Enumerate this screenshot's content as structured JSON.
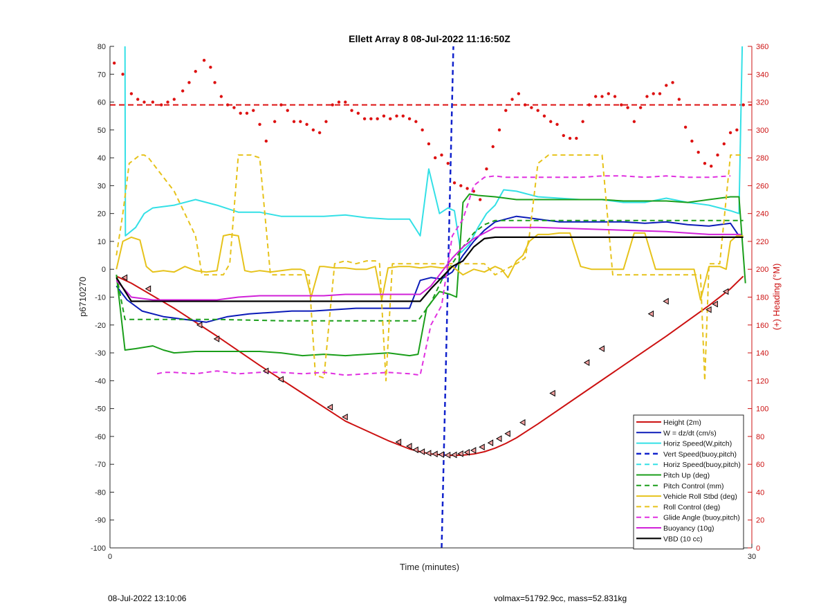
{
  "footer": {
    "timestamp": "08-Jul-2022 13:10:06",
    "summary": "volmax=51792.9cc, mass=52.831kg"
  },
  "chart_data": {
    "type": "line",
    "title": "Ellett Array 8 08-Jul-2022 11:16:50Z",
    "xlabel": "Time (minutes)",
    "ylabel": "p6710270",
    "ylabel_right": "(+) Heading (°M)",
    "xlim": [
      0,
      30
    ],
    "ylim": [
      -100,
      80
    ],
    "ylim_right": [
      0,
      360
    ],
    "xticks": [
      0,
      30
    ],
    "yticks": [
      80,
      70,
      60,
      50,
      40,
      30,
      20,
      10,
      0,
      -10,
      -20,
      -30,
      -40,
      -50,
      -60,
      -70,
      -80,
      -90,
      -100
    ],
    "yticks_right": [
      360,
      340,
      320,
      300,
      280,
      260,
      240,
      220,
      200,
      180,
      160,
      140,
      120,
      100,
      80,
      60,
      40,
      20,
      0
    ],
    "grid": false,
    "legend_position": "bottom-right",
    "colors": {
      "height": "#cc1111",
      "w": "#0a1ab8",
      "horiz": "#33e0e6",
      "vert_buoy": "#1122cc",
      "pitch": "#1a9e1a",
      "roll": "#e6c21a",
      "glide": "#e030e0",
      "buoyancy": "#d020d8",
      "vbd": "#000000",
      "heading": "#dd1111",
      "axis_right": "#cc1111"
    },
    "series": [
      {
        "name": "Height (2m)",
        "color": "#cc1111",
        "style": "solid",
        "width": 2,
        "x": [
          0.3,
          1.0,
          3.0,
          5.0,
          7.0,
          9.0,
          11.0,
          13.0,
          14.0,
          14.5,
          15.0,
          15.5,
          16.0,
          16.5,
          17.0,
          17.5,
          18.0,
          18.5,
          19.0,
          19.5,
          20.0,
          22.0,
          24.0,
          26.0,
          28.0,
          29.0,
          29.6
        ],
        "y": [
          -2.5,
          -5,
          -14,
          -24,
          -34.5,
          -44.5,
          -54.5,
          -61.5,
          -64.5,
          -65.5,
          -66.3,
          -66.6,
          -66.8,
          -66.7,
          -66.3,
          -65.5,
          -64.2,
          -62.5,
          -60.5,
          -58,
          -55.5,
          -45,
          -34.5,
          -24,
          -13,
          -7,
          -2.5
        ]
      },
      {
        "name": "W = dz/dt (cm/s)",
        "color": "#0a1ab8",
        "style": "solid",
        "width": 2,
        "x": [
          0.3,
          0.8,
          1.5,
          2.5,
          3.5,
          4.5,
          5.5,
          6.5,
          7.5,
          8.5,
          9.5,
          10.5,
          11.5,
          12.5,
          13.5,
          14.0,
          14.5,
          15.0,
          15.5,
          16.0,
          16.5,
          17.0,
          17.5,
          18.0,
          18.5,
          19.0,
          20.0,
          21.0,
          22.0,
          23.0,
          24.0,
          25.0,
          26.0,
          27.0,
          28.0,
          29.0,
          29.4
        ],
        "y": [
          -6,
          -11,
          -15,
          -17,
          -18,
          -19,
          -17,
          -16,
          -15.5,
          -15,
          -15,
          -14.5,
          -14,
          -14,
          -14,
          -14,
          -4,
          -3,
          -3.5,
          -1,
          5,
          10,
          14,
          17,
          18,
          19,
          18,
          17,
          17,
          17,
          17,
          16.5,
          17,
          16,
          15.5,
          16.5,
          12
        ]
      },
      {
        "name": "Horiz Speed(W,pitch)",
        "color": "#33e0e6",
        "style": "solid",
        "width": 2,
        "x": [
          0.7,
          0.72,
          1.2,
          1.6,
          2.0,
          3.0,
          4.0,
          5.0,
          6.0,
          7.0,
          8.0,
          9.0,
          10.0,
          11.0,
          12.0,
          13.0,
          14.0,
          14.5,
          14.9,
          15.4,
          15.8,
          16.1,
          16.4,
          16.8,
          17.2,
          17.6,
          18.0,
          18.4,
          19.0,
          20.0,
          21.0,
          22.0,
          23.0,
          24.0,
          25.0,
          26.0,
          27.0,
          28.0,
          29.0,
          29.4,
          29.55
        ],
        "y": [
          80,
          12,
          15,
          20,
          22,
          23,
          25,
          23,
          20.5,
          20.5,
          19,
          19,
          19,
          19.5,
          18.5,
          18,
          18,
          12,
          36,
          20,
          22,
          21,
          6,
          9,
          15,
          20,
          23,
          28.5,
          28,
          26,
          25.5,
          25,
          25,
          24,
          24,
          25.5,
          24,
          23,
          21,
          20,
          80
        ]
      },
      {
        "name": "Vert Speed(buoy,pitch)",
        "color": "#1122cc",
        "style": "dash",
        "width": 2.5,
        "x": [
          15.5,
          16.05
        ],
        "y": [
          -100,
          80
        ]
      },
      {
        "name": "Horiz Speed(buoy,pitch)",
        "color": "#33e0e6",
        "style": "dash",
        "width": 2,
        "x": [],
        "y": []
      },
      {
        "name": "Pitch Up (deg)",
        "color": "#1a9e1a",
        "style": "solid",
        "width": 2,
        "x": [
          0.3,
          0.7,
          1.2,
          2.0,
          2.5,
          3.0,
          4.0,
          5.0,
          6.0,
          7.0,
          8.0,
          9.0,
          10.0,
          11.0,
          12.0,
          13.0,
          14.0,
          14.4,
          14.8,
          15.4,
          15.9,
          16.2,
          16.5,
          16.8,
          17.2,
          18.0,
          19.0,
          20.0,
          21.0,
          22.0,
          23.0,
          24.0,
          25.0,
          26.0,
          27.0,
          28.0,
          29.0,
          29.4,
          29.7
        ],
        "y": [
          -2,
          -29,
          -28.5,
          -27.5,
          -29,
          -30,
          -29.5,
          -29.5,
          -29.5,
          -29.5,
          -30,
          -31,
          -30.5,
          -31,
          -30.5,
          -30,
          -31,
          -30.5,
          -14,
          -8,
          -9,
          -10,
          24,
          27,
          26.5,
          26,
          25,
          25,
          25,
          25,
          25,
          24.5,
          24.5,
          24.5,
          24,
          25,
          26,
          26,
          -5
        ]
      },
      {
        "name": "Pitch Control (mm)",
        "color": "#1a9e1a",
        "style": "dash",
        "width": 2,
        "x": [
          0.3,
          0.7,
          2.0,
          5.0,
          8.0,
          11.0,
          14.4,
          15.0,
          15.5,
          16.0,
          16.5,
          17.0,
          17.5,
          18.0,
          19.0,
          22.0,
          25.0,
          28.0,
          29.6
        ],
        "y": [
          -2,
          -18,
          -18,
          -18,
          -18.5,
          -18.5,
          -18.5,
          -12,
          -4,
          2,
          8,
          13,
          16,
          17.5,
          17.5,
          17.5,
          17.5,
          17.5,
          17.5
        ]
      },
      {
        "name": "Vehicle Roll Stbd (deg)",
        "color": "#e6c21a",
        "style": "solid",
        "width": 2,
        "x": [
          0.3,
          0.6,
          1.0,
          1.4,
          1.7,
          2.0,
          2.5,
          3.0,
          3.5,
          4.0,
          4.5,
          5.0,
          5.3,
          5.6,
          6.0,
          6.3,
          6.6,
          7.0,
          7.5,
          8.0,
          8.5,
          8.9,
          9.1,
          9.4,
          9.8,
          10.0,
          10.5,
          11.0,
          11.5,
          12.0,
          12.4,
          12.7,
          13.0,
          13.5,
          14.0,
          14.5,
          15.0,
          15.5,
          16.0,
          16.5,
          17.0,
          17.5,
          18.0,
          18.3,
          18.6,
          19.0,
          19.3,
          19.6,
          20.0,
          20.5,
          21.0,
          21.5,
          22.0,
          22.5,
          23.0,
          23.3,
          23.6,
          24.0,
          24.5,
          25.0,
          25.5,
          26.0,
          26.4,
          26.7,
          27.0,
          27.3,
          27.6,
          28.0,
          28.5,
          28.8,
          29.0,
          29.3,
          29.6
        ],
        "y": [
          0,
          10,
          11.5,
          10.5,
          1,
          -1,
          -0.5,
          -1,
          1,
          -0.5,
          -1,
          -0.5,
          12,
          12.5,
          12,
          -0.5,
          -1,
          -0.5,
          -1,
          -0.5,
          0,
          0,
          -0.5,
          -10,
          1,
          1,
          0.5,
          0.5,
          0,
          0,
          1,
          -11,
          0.5,
          1,
          1,
          0.5,
          1,
          0.5,
          1,
          -2,
          0,
          -1,
          1,
          0,
          -3,
          3,
          5,
          10,
          12.5,
          12.5,
          13,
          13,
          1,
          0,
          0,
          0,
          0,
          0,
          13,
          13,
          0,
          0,
          0,
          0,
          0,
          0,
          -11,
          1,
          1,
          0,
          10,
          12,
          12
        ]
      },
      {
        "name": "Roll Control (deg)",
        "color": "#e6c21a",
        "style": "dash",
        "width": 2,
        "x": [
          0.3,
          0.6,
          0.9,
          1.4,
          1.6,
          1.8,
          3.0,
          4.0,
          4.3,
          4.6,
          5.0,
          5.3,
          5.6,
          6.0,
          6.3,
          6.6,
          7.0,
          7.5,
          8.0,
          8.4,
          8.7,
          9.0,
          9.3,
          9.6,
          10.0,
          10.5,
          11.0,
          11.5,
          12.0,
          12.4,
          12.6,
          12.9,
          13.2,
          14.0,
          14.5,
          15.0,
          15.5,
          16.0,
          16.5,
          17.0,
          17.5,
          18.0,
          18.5,
          19.0,
          19.4,
          19.6,
          19.8,
          20.0,
          20.5,
          21.0,
          21.5,
          22.0,
          22.4,
          22.6,
          22.8,
          23.0,
          23.5,
          24.0,
          24.5,
          25.0,
          25.3,
          25.5,
          25.7,
          26.0,
          26.5,
          27.0,
          27.3,
          27.6,
          27.8,
          28.0,
          28.5,
          29.0,
          29.3,
          29.6
        ],
        "y": [
          5,
          20,
          38,
          41,
          41,
          40,
          28,
          12,
          -2,
          -2,
          -2,
          -2,
          2,
          41,
          41,
          41,
          40,
          -2,
          -2,
          -2,
          -2,
          -2,
          -2,
          -38,
          -39,
          2,
          3,
          2,
          3,
          3,
          2,
          -40,
          2,
          2,
          2,
          2,
          2,
          2,
          2,
          2,
          2,
          -2,
          0,
          2,
          4,
          12,
          25,
          38,
          41,
          41,
          41,
          41,
          41,
          41,
          41,
          41,
          -2,
          -2,
          -2,
          -2,
          -2,
          -2,
          -2,
          -2,
          -2,
          -2,
          -2,
          -2,
          -40,
          2,
          2,
          41,
          41,
          41
        ]
      },
      {
        "name": "Glide Angle (buoy,pitch)",
        "color": "#e030e0",
        "style": "dash",
        "width": 2,
        "x": [
          2.2,
          2.5,
          3.0,
          4.0,
          5.0,
          6.0,
          7.0,
          8.0,
          9.0,
          10.0,
          11.0,
          12.0,
          13.0,
          14.0,
          14.5,
          15.0,
          15.5,
          16.0,
          16.5,
          17.0,
          17.5,
          18.0,
          18.5,
          19.0,
          20.0,
          21.0,
          22.0,
          23.0,
          24.0,
          25.0,
          26.0,
          27.0,
          28.0,
          29.0
        ],
        "y": [
          -37.5,
          -37,
          -37,
          -37.5,
          -36.5,
          -37.5,
          -37,
          -37,
          -37.5,
          -37,
          -38,
          -37.5,
          -37,
          -37.5,
          -38,
          -20,
          -13,
          12,
          18,
          30,
          33,
          33.5,
          33,
          33,
          33,
          33,
          33,
          33.5,
          33.5,
          33,
          33.5,
          33,
          33,
          33.5
        ]
      },
      {
        "name": "Buoyancy (10g)",
        "color": "#d020d8",
        "style": "solid",
        "width": 2,
        "x": [
          0.3,
          1.0,
          2.0,
          3.0,
          4.0,
          5.0,
          6.0,
          7.0,
          8.0,
          9.0,
          10.0,
          11.0,
          12.0,
          13.0,
          14.0,
          14.5,
          15.0,
          15.5,
          16.0,
          16.5,
          17.0,
          17.5,
          18.0,
          18.5,
          19.0,
          20.0,
          22.0,
          24.0,
          26.0,
          28.0,
          29.0,
          29.5
        ],
        "y": [
          -4,
          -10,
          -11,
          -11,
          -11,
          -11,
          -10,
          -9.5,
          -9.5,
          -9.5,
          -9.5,
          -9,
          -9,
          -9,
          -9,
          -9,
          -6,
          -1,
          4,
          8,
          11,
          13,
          15,
          15,
          15,
          15,
          14.5,
          14,
          13.5,
          12.5,
          12.5,
          12.5
        ]
      },
      {
        "name": "VBD (10 cc)",
        "color": "#000000",
        "style": "solid",
        "width": 2.2,
        "x": [
          0.3,
          1.0,
          2.0,
          3.0,
          4.0,
          5.0,
          6.0,
          7.0,
          8.0,
          9.0,
          10.0,
          11.0,
          12.0,
          13.0,
          14.0,
          14.5,
          15.0,
          15.5,
          16.0,
          16.5,
          17.0,
          17.5,
          18.0,
          18.5,
          19.0,
          20.0,
          22.0,
          24.0,
          26.0,
          28.0,
          29.0,
          29.6
        ],
        "y": [
          -3,
          -11.5,
          -11.5,
          -11.5,
          -11.5,
          -11.5,
          -11.5,
          -11.5,
          -11.5,
          -11.5,
          -11.5,
          -11.5,
          -11.5,
          -11.5,
          -11.5,
          -11.5,
          -7,
          -3,
          1,
          3,
          8,
          11,
          11.5,
          11.5,
          11.5,
          11.5,
          11.5,
          11.5,
          11.5,
          11.5,
          11.5,
          11.5
        ]
      }
    ],
    "heading_points": {
      "name": "Heading",
      "axis": "right",
      "color": "#dd1111",
      "x": [
        0.2,
        0.6,
        1.0,
        1.3,
        1.6,
        2.0,
        2.4,
        2.7,
        3.0,
        3.4,
        3.7,
        4.0,
        4.4,
        4.7,
        4.9,
        5.2,
        5.5,
        5.8,
        6.1,
        6.4,
        6.7,
        7.0,
        7.3,
        7.7,
        8.0,
        8.3,
        8.6,
        8.9,
        9.2,
        9.5,
        9.8,
        10.1,
        10.4,
        10.7,
        11.0,
        11.3,
        11.6,
        11.9,
        12.2,
        12.5,
        12.8,
        13.1,
        13.4,
        13.7,
        14.0,
        14.3,
        14.6,
        14.9,
        15.2,
        15.5,
        15.8,
        16.1,
        16.4,
        16.7,
        17.0,
        17.3,
        17.6,
        17.9,
        18.2,
        18.5,
        18.8,
        19.1,
        19.4,
        19.7,
        20.0,
        20.3,
        20.6,
        20.9,
        21.2,
        21.5,
        21.8,
        22.1,
        22.4,
        22.7,
        23.0,
        23.3,
        23.6,
        23.9,
        24.2,
        24.5,
        24.8,
        25.1,
        25.4,
        25.7,
        26.0,
        26.3,
        26.6,
        26.9,
        27.2,
        27.5,
        27.8,
        28.1,
        28.4,
        28.7,
        29.0,
        29.3,
        29.6
      ],
      "y": [
        348,
        340,
        326,
        322,
        320,
        320,
        318,
        320,
        322,
        328,
        334,
        342,
        350,
        345,
        334,
        324,
        318,
        316,
        312,
        312,
        314,
        304,
        292,
        306,
        318,
        314,
        306,
        306,
        304,
        300,
        298,
        306,
        318,
        320,
        320,
        314,
        312,
        308,
        308,
        308,
        310,
        308,
        310,
        310,
        308,
        306,
        300,
        290,
        280,
        282,
        276,
        262,
        260,
        258,
        256,
        250,
        272,
        288,
        300,
        314,
        322,
        326,
        318,
        316,
        314,
        310,
        306,
        304,
        296,
        294,
        294,
        306,
        318,
        324,
        324,
        326,
        324,
        318,
        316,
        306,
        316,
        324,
        326,
        326,
        332,
        334,
        322,
        302,
        292,
        284,
        276,
        274,
        282,
        290,
        298,
        300,
        318
      ]
    },
    "heading_reference": {
      "name": "Heading target",
      "axis": "right",
      "value": 318,
      "color": "#dd1111",
      "style": "dash"
    },
    "height_markers": {
      "x": [
        0.7,
        1.8,
        4.2,
        5.0,
        7.3,
        8.0,
        10.3,
        11.0,
        13.5,
        14.0,
        14.3,
        14.6,
        14.9,
        15.2,
        15.5,
        15.8,
        16.1,
        16.4,
        16.7,
        17.0,
        17.4,
        17.8,
        18.2,
        18.6,
        19.3,
        20.7,
        22.3,
        23.0,
        25.3,
        26.0,
        28.0,
        28.3,
        28.8
      ],
      "y": [
        -3,
        -7,
        -20,
        -25,
        -36.5,
        -39.5,
        -49.5,
        -53,
        -62,
        -63.5,
        -64.8,
        -65.5,
        -66,
        -66.3,
        -66.5,
        -66.7,
        -66.6,
        -66.2,
        -65.7,
        -65,
        -63.8,
        -62.3,
        -60.8,
        -59,
        -55,
        -44.5,
        -33.5,
        -28.5,
        -16,
        -11.5,
        -14.5,
        -12.5,
        -8
      ]
    }
  }
}
